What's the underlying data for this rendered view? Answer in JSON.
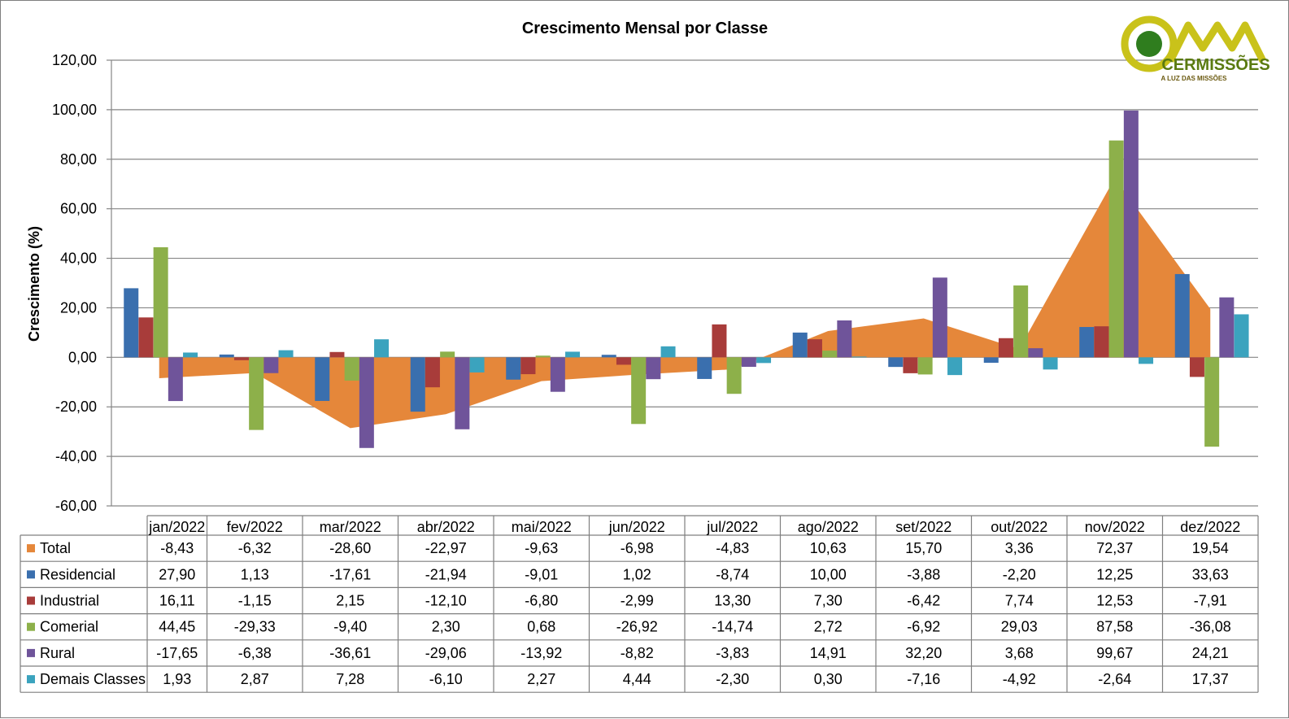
{
  "chart_data": {
    "type": "bar",
    "title": "Crescimento Mensal por Classe",
    "xlabel": "",
    "ylabel": "Crescimento (%)",
    "ylim": [
      -60,
      120
    ],
    "yticks": [
      -60,
      -40,
      -20,
      0,
      20,
      40,
      60,
      80,
      100,
      120
    ],
    "yticks_labels": [
      "-60,00",
      "-40,00",
      "-20,00",
      "0,00",
      "20,00",
      "40,00",
      "60,00",
      "80,00",
      "100,00",
      "120,00"
    ],
    "grid": true,
    "legend_placement": "data-table-bottom",
    "categories": [
      "jan/2022",
      "fev/2022",
      "mar/2022",
      "abr/2022",
      "mai/2022",
      "jun/2022",
      "jul/2022",
      "ago/2022",
      "set/2022",
      "out/2022",
      "nov/2022",
      "dez/2022"
    ],
    "area_series": {
      "name": "Total",
      "color": "#E5873A",
      "values": [
        -8.43,
        -6.32,
        -28.6,
        -22.97,
        -9.63,
        -6.98,
        -4.83,
        10.63,
        15.7,
        3.36,
        72.37,
        19.54
      ],
      "labels": [
        "-8,43",
        "-6,32",
        "-28,60",
        "-22,97",
        "-9,63",
        "-6,98",
        "-4,83",
        "10,63",
        "15,70",
        "3,36",
        "72,37",
        "19,54"
      ]
    },
    "series": [
      {
        "name": "Residencial",
        "color": "#3A6FAE",
        "values": [
          27.9,
          1.13,
          -17.61,
          -21.94,
          -9.01,
          1.02,
          -8.74,
          10.0,
          -3.88,
          -2.2,
          12.25,
          33.63
        ],
        "labels": [
          "27,90",
          "1,13",
          "-17,61",
          "-21,94",
          "-9,01",
          "1,02",
          "-8,74",
          "10,00",
          "-3,88",
          "-2,20",
          "12,25",
          "33,63"
        ]
      },
      {
        "name": "Industrial",
        "color": "#A83C3A",
        "values": [
          16.11,
          -1.15,
          2.15,
          -12.1,
          -6.8,
          -2.99,
          13.3,
          7.3,
          -6.42,
          7.74,
          12.53,
          -7.91
        ],
        "labels": [
          "16,11",
          "-1,15",
          "2,15",
          "-12,10",
          "-6,80",
          "-2,99",
          "13,30",
          "7,30",
          "-6,42",
          "7,74",
          "12,53",
          "-7,91"
        ]
      },
      {
        "name": "Comerial",
        "color": "#8DB04A",
        "values": [
          44.45,
          -29.33,
          -9.4,
          2.3,
          0.68,
          -26.92,
          -14.74,
          2.72,
          -6.92,
          29.03,
          87.58,
          -36.08
        ],
        "labels": [
          "44,45",
          "-29,33",
          "-9,40",
          "2,30",
          "0,68",
          "-26,92",
          "-14,74",
          "2,72",
          "-6,92",
          "29,03",
          "87,58",
          "-36,08"
        ]
      },
      {
        "name": "Rural",
        "color": "#6F549A",
        "values": [
          -17.65,
          -6.38,
          -36.61,
          -29.06,
          -13.92,
          -8.82,
          -3.83,
          14.91,
          32.2,
          3.68,
          99.67,
          24.21
        ],
        "labels": [
          "-17,65",
          "-6,38",
          "-36,61",
          "-29,06",
          "-13,92",
          "-8,82",
          "-3,83",
          "14,91",
          "32,20",
          "3,68",
          "99,67",
          "24,21"
        ]
      },
      {
        "name": "Demais Classes",
        "color": "#3BA3BE",
        "values": [
          1.93,
          2.87,
          7.28,
          -6.1,
          2.27,
          4.44,
          -2.3,
          0.3,
          -7.16,
          -4.92,
          -2.64,
          17.37
        ],
        "labels": [
          "1,93",
          "2,87",
          "7,28",
          "-6,10",
          "2,27",
          "4,44",
          "-2,30",
          "0,30",
          "-7,16",
          "-4,92",
          "-2,64",
          "17,37"
        ]
      }
    ]
  },
  "logo": {
    "name": "CERMISSÕES",
    "tagline": "A LUZ DAS MISSÕES",
    "colors": {
      "ring": "#C9C21A",
      "text": "#5a7a10"
    }
  }
}
